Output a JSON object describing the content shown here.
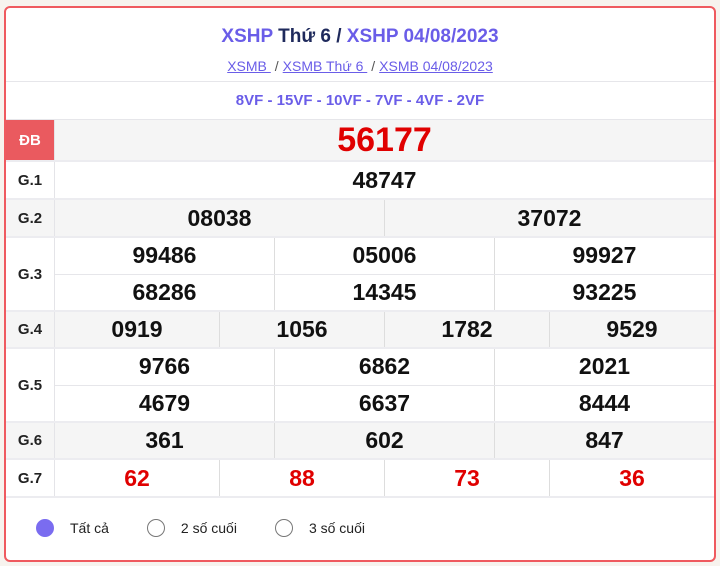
{
  "header": {
    "title_a": "XSHP",
    "title_b": "Thứ 6",
    "title_sep": " / ",
    "title_c": "XSHP 04/08/2023",
    "links": [
      "XSMB ",
      "XSMB Thứ 6 ",
      "XSMB 04/08/2023"
    ],
    "sep": "/"
  },
  "codes": "8VF - 15VF - 10VF - 7VF - 4VF - 2VF",
  "prizes": [
    {
      "label": "ĐB",
      "rows": [
        [
          "56177"
        ]
      ]
    },
    {
      "label": "G.1",
      "rows": [
        [
          "48747"
        ]
      ]
    },
    {
      "label": "G.2",
      "rows": [
        [
          "08038",
          "37072"
        ]
      ]
    },
    {
      "label": "G.3",
      "rows": [
        [
          "99486",
          "05006",
          "99927"
        ],
        [
          "68286",
          "14345",
          "93225"
        ]
      ]
    },
    {
      "label": "G.4",
      "rows": [
        [
          "0919",
          "1056",
          "1782",
          "9529"
        ]
      ]
    },
    {
      "label": "G.5",
      "rows": [
        [
          "9766",
          "6862",
          "2021"
        ],
        [
          "4679",
          "6637",
          "8444"
        ]
      ]
    },
    {
      "label": "G.6",
      "rows": [
        [
          "361",
          "602",
          "847"
        ]
      ]
    },
    {
      "label": "G.7",
      "rows": [
        [
          "62",
          "88",
          "73",
          "36"
        ]
      ]
    }
  ],
  "filters": [
    {
      "label": "Tất cả",
      "selected": true
    },
    {
      "label": "2 số cuối",
      "selected": false
    },
    {
      "label": "3 số cuối",
      "selected": false
    }
  ],
  "colors": {
    "accent": "#6a5de8",
    "special_red": "#e00000",
    "db_label_bg": "#ea5a5f",
    "border": "#ef5a5f"
  }
}
